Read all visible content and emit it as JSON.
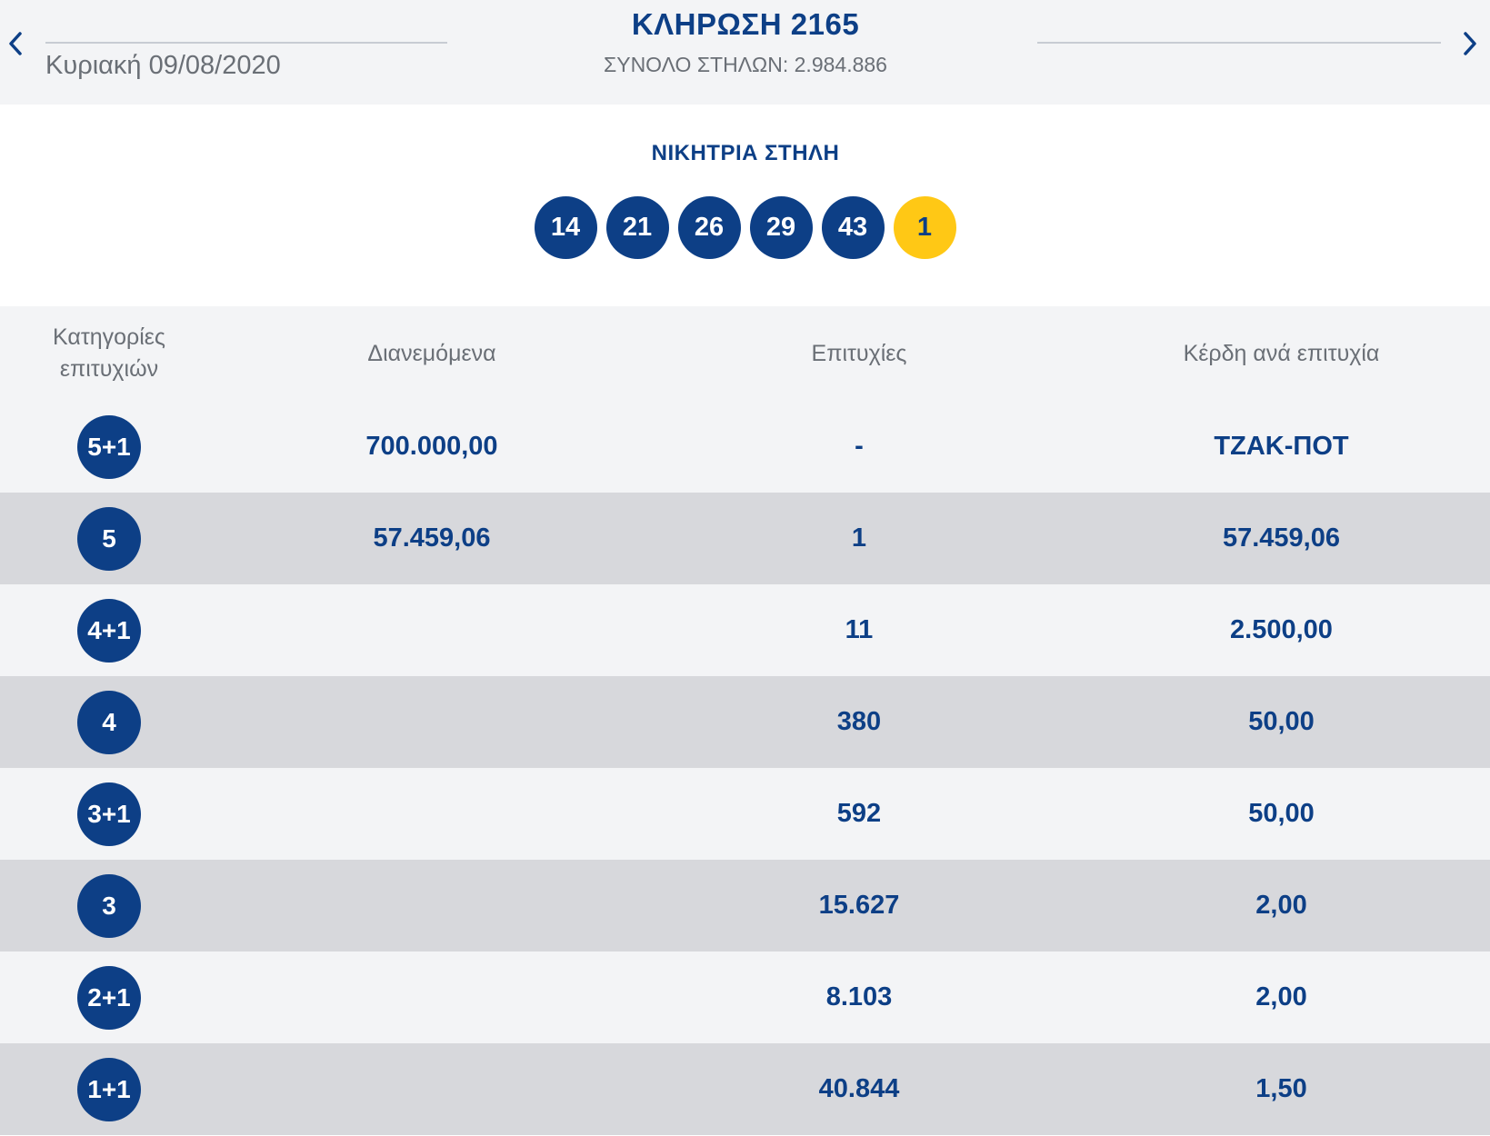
{
  "header": {
    "prev_icon": "chevron-left-icon",
    "next_icon": "chevron-right-icon",
    "date": "Κυριακή 09/08/2020",
    "title": "ΚΛΗΡΩΣΗ 2165",
    "total_columns": "ΣΥΝΟΛΟ ΣΤΗΛΩΝ: 2.984.886"
  },
  "winning": {
    "title": "ΝΙΚΗΤΡΙΑ ΣΤΗΛΗ",
    "numbers": [
      "14",
      "21",
      "26",
      "29",
      "43"
    ],
    "bonus": "1",
    "colors": {
      "ball": "#0d3f86",
      "bonus": "#ffc815"
    }
  },
  "table": {
    "headers": [
      "Κατηγορίες επιτυχιών",
      "Διανεμόμενα",
      "Επιτυχίες",
      "Κέρδη ανά επιτυχία"
    ],
    "rows": [
      {
        "category": "5+1",
        "distributed": "700.000,00",
        "winners": "-",
        "prize": "ΤΖΑΚ-ΠΟΤ"
      },
      {
        "category": "5",
        "distributed": "57.459,06",
        "winners": "1",
        "prize": "57.459,06"
      },
      {
        "category": "4+1",
        "distributed": "",
        "winners": "11",
        "prize": "2.500,00"
      },
      {
        "category": "4",
        "distributed": "",
        "winners": "380",
        "prize": "50,00"
      },
      {
        "category": "3+1",
        "distributed": "",
        "winners": "592",
        "prize": "50,00"
      },
      {
        "category": "3",
        "distributed": "",
        "winners": "15.627",
        "prize": "2,00"
      },
      {
        "category": "2+1",
        "distributed": "",
        "winners": "8.103",
        "prize": "2,00"
      },
      {
        "category": "1+1",
        "distributed": "",
        "winners": "40.844",
        "prize": "1,50"
      }
    ]
  }
}
